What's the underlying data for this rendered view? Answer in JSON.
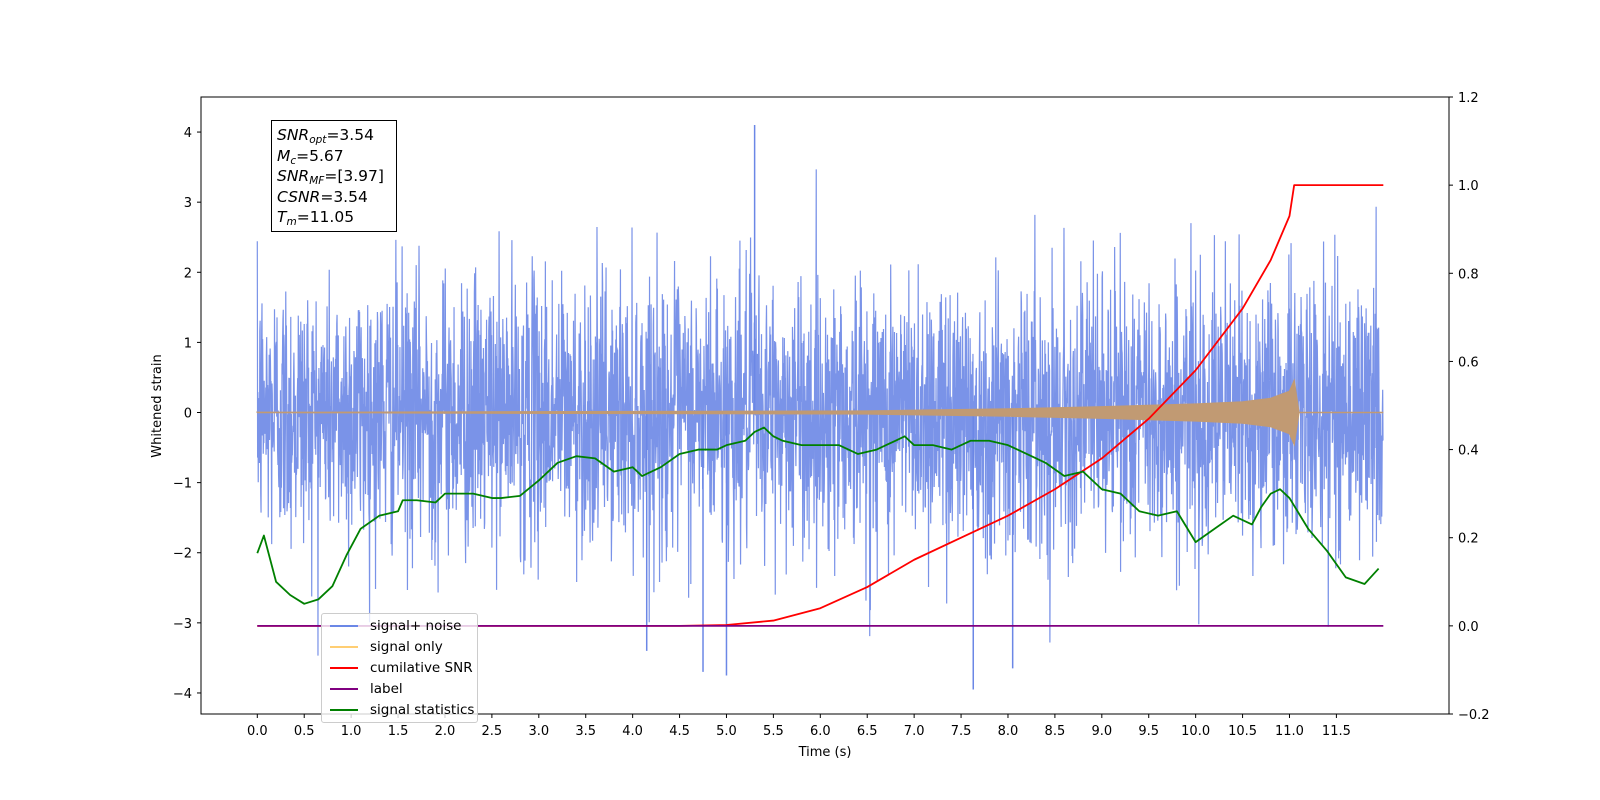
{
  "chart_data": {
    "type": "line",
    "xlabel": "Time (s)",
    "ylabel": "Whitened strain",
    "xlim": [
      -0.6,
      12.7
    ],
    "ylim": [
      -4.3,
      4.5
    ],
    "ylim_right": [
      -0.2,
      1.2
    ],
    "x_ticks": [
      "0.0",
      "0.5",
      "1.0",
      "1.5",
      "2.0",
      "2.5",
      "3.0",
      "3.5",
      "4.0",
      "4.5",
      "5.0",
      "5.5",
      "6.0",
      "6.5",
      "7.0",
      "7.5",
      "8.0",
      "8.5",
      "9.0",
      "9.5",
      "10.0",
      "10.5",
      "11.0",
      "11.5"
    ],
    "y_ticks_left": [
      "4",
      "3",
      "2",
      "1",
      "0",
      "−1",
      "−2",
      "−3",
      "−4"
    ],
    "y_ticks_right": [
      "1.2",
      "1.0",
      "0.8",
      "0.6",
      "0.4",
      "0.2",
      "0.0",
      "−0.2"
    ],
    "legend_position": "lower-left",
    "series": [
      {
        "name": "signal+ noise",
        "axis": "left",
        "color": "#6b87e6",
        "duration": [
          0,
          12.0
        ],
        "band": [
          -1.2,
          1.2
        ],
        "notable_extremes": [
          [
            5.3,
            4.1
          ],
          [
            7.63,
            -3.95
          ],
          [
            5.0,
            -3.75
          ],
          [
            4.75,
            -3.7
          ],
          [
            8.05,
            -3.65
          ],
          [
            4.15,
            -3.4
          ]
        ]
      },
      {
        "name": "signal only",
        "axis": "left",
        "color": "#ffa600",
        "x": [
          0.0,
          6.5,
          8.0,
          9.0,
          10.0,
          10.5,
          10.8,
          11.0,
          11.05,
          11.1,
          12.0
        ],
        "amplitude": [
          0.0,
          0.02,
          0.05,
          0.08,
          0.12,
          0.15,
          0.2,
          0.3,
          0.45,
          0.0,
          0.0
        ]
      },
      {
        "name": "cumilative SNR",
        "axis": "right",
        "color": "#ff0000",
        "x": [
          0.0,
          4.5,
          5.0,
          5.5,
          6.0,
          6.5,
          7.0,
          7.5,
          8.0,
          8.5,
          9.0,
          9.5,
          10.0,
          10.5,
          10.8,
          11.0,
          11.05,
          12.0
        ],
        "y": [
          0.0,
          0.0,
          0.002,
          0.012,
          0.04,
          0.088,
          0.15,
          0.2,
          0.25,
          0.31,
          0.38,
          0.47,
          0.58,
          0.72,
          0.83,
          0.93,
          1.0,
          1.0
        ]
      },
      {
        "name": "label",
        "axis": "right",
        "color": "#800080",
        "x": [
          0.0,
          12.0
        ],
        "y": [
          0.0,
          0.0
        ]
      },
      {
        "name": "signal statistics",
        "axis": "right",
        "color": "#008000",
        "x": [
          0.0,
          0.07,
          0.2,
          0.35,
          0.5,
          0.65,
          0.8,
          0.95,
          1.1,
          1.3,
          1.5,
          1.55,
          1.7,
          1.9,
          2.0,
          2.1,
          2.3,
          2.5,
          2.6,
          2.8,
          3.0,
          3.2,
          3.4,
          3.6,
          3.8,
          4.0,
          4.1,
          4.3,
          4.5,
          4.7,
          4.9,
          5.0,
          5.2,
          5.3,
          5.4,
          5.5,
          5.6,
          5.8,
          6.0,
          6.2,
          6.4,
          6.6,
          6.8,
          6.9,
          7.0,
          7.2,
          7.4,
          7.5,
          7.6,
          7.8,
          8.0,
          8.2,
          8.4,
          8.6,
          8.8,
          9.0,
          9.2,
          9.4,
          9.6,
          9.8,
          10.0,
          10.2,
          10.4,
          10.6,
          10.7,
          10.8,
          10.9,
          11.0,
          11.2,
          11.4,
          11.6,
          11.8,
          11.95
        ],
        "y": [
          0.165,
          0.205,
          0.1,
          0.07,
          0.05,
          0.06,
          0.09,
          0.16,
          0.22,
          0.25,
          0.26,
          0.285,
          0.285,
          0.28,
          0.3,
          0.3,
          0.3,
          0.29,
          0.29,
          0.295,
          0.33,
          0.37,
          0.385,
          0.38,
          0.35,
          0.36,
          0.34,
          0.36,
          0.39,
          0.4,
          0.4,
          0.41,
          0.42,
          0.44,
          0.45,
          0.43,
          0.42,
          0.41,
          0.41,
          0.41,
          0.39,
          0.4,
          0.42,
          0.43,
          0.41,
          0.41,
          0.4,
          0.41,
          0.42,
          0.42,
          0.41,
          0.39,
          0.37,
          0.34,
          0.35,
          0.31,
          0.3,
          0.26,
          0.25,
          0.26,
          0.19,
          0.22,
          0.25,
          0.23,
          0.27,
          0.3,
          0.31,
          0.29,
          0.22,
          0.17,
          0.11,
          0.095,
          0.13
        ]
      }
    ],
    "annotation": {
      "snr_opt": {
        "symbol": "SNR",
        "sub": "opt",
        "value": "=3.54"
      },
      "mc": {
        "symbol": "M",
        "sub": "c",
        "value": "=5.67"
      },
      "snr_mf": {
        "symbol": "SNR",
        "sub": "MF",
        "value": "=[3.97]"
      },
      "csnr": {
        "symbol": "CSNR",
        "value": "=3.54"
      },
      "tm": {
        "symbol": "T",
        "sub": "m",
        "value": "=11.05"
      }
    }
  }
}
